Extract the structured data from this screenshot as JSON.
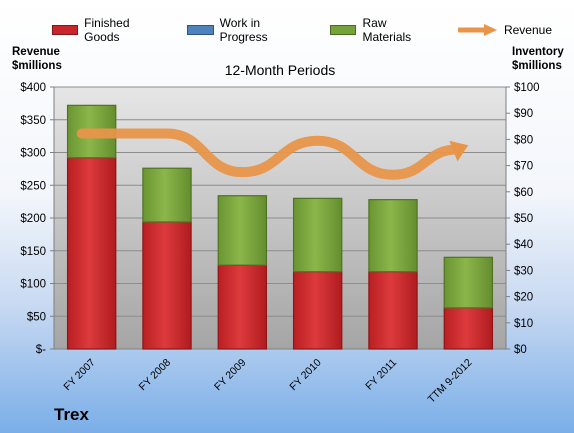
{
  "chart_data": {
    "type": "bar",
    "subtype": "stacked-bar-with-line-secondary-axis",
    "title": "12-Month Periods",
    "categories": [
      "FY 2007",
      "FY 2008",
      "FY 2009",
      "FY 2010",
      "FY 2011",
      "TTM 9-2012"
    ],
    "series": [
      {
        "name": "Finished Goods",
        "kind": "bar",
        "axis": "right",
        "color": "#c8262a",
        "values": [
          73,
          48.5,
          32,
          29.5,
          29.5,
          15.7
        ]
      },
      {
        "name": "Work in Progress",
        "kind": "bar",
        "axis": "right",
        "color": "#4f81bd",
        "values": [
          0,
          0,
          0,
          0,
          0,
          0
        ]
      },
      {
        "name": "Raw Materials",
        "kind": "bar",
        "axis": "right",
        "color": "#76a23a",
        "values": [
          20,
          20.5,
          26.5,
          28,
          27.5,
          19.3
        ]
      },
      {
        "name": "Revenue",
        "kind": "line",
        "axis": "left",
        "color": "#e8954a",
        "values": [
          329,
          329,
          270,
          318,
          266,
          311
        ]
      }
    ],
    "left_axis": {
      "label_lines": [
        "Revenue",
        "$millions"
      ],
      "ylim": [
        0,
        400
      ],
      "ticks": [
        0,
        50,
        100,
        150,
        200,
        250,
        300,
        350,
        400
      ],
      "tick_labels": [
        "$-",
        "$50",
        "$100",
        "$150",
        "$200",
        "$250",
        "$300",
        "$350",
        "$400"
      ]
    },
    "right_axis": {
      "label_lines": [
        "Inventory",
        "$millions"
      ],
      "ylim": [
        0,
        100
      ],
      "ticks": [
        0,
        10,
        20,
        30,
        40,
        50,
        60,
        70,
        80,
        90,
        100
      ],
      "tick_labels": [
        "$0",
        "$10",
        "$20",
        "$30",
        "$40",
        "$50",
        "$60",
        "$70",
        "$80",
        "$90",
        "$100"
      ]
    },
    "grid": true,
    "legend_position": "top",
    "company": "Trex"
  }
}
